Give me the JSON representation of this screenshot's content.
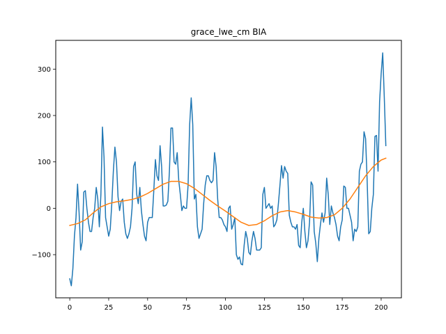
{
  "chart_data": {
    "type": "line",
    "title": "grace_lwe_cm BIA",
    "xlabel": "",
    "ylabel": "",
    "xlim": [
      -9,
      213
    ],
    "ylim": [
      -193,
      362
    ],
    "x_ticks": [
      0,
      25,
      50,
      75,
      100,
      125,
      150,
      175,
      200
    ],
    "y_ticks": [
      -100,
      0,
      100,
      200,
      300
    ],
    "grid": false,
    "legend": "none",
    "series": [
      {
        "color": "#1f77b4",
        "points": [
          [
            0,
            -152
          ],
          [
            1,
            -167
          ],
          [
            2,
            -130
          ],
          [
            3,
            -60
          ],
          [
            4,
            -20
          ],
          [
            5,
            52
          ],
          [
            6,
            -10
          ],
          [
            7,
            -90
          ],
          [
            8,
            -72
          ],
          [
            9,
            35
          ],
          [
            10,
            38
          ],
          [
            11,
            0
          ],
          [
            12,
            -30
          ],
          [
            13,
            -50
          ],
          [
            14,
            -50
          ],
          [
            15,
            -20
          ],
          [
            16,
            0
          ],
          [
            17,
            45
          ],
          [
            18,
            20
          ],
          [
            19,
            -40
          ],
          [
            20,
            30
          ],
          [
            21,
            175
          ],
          [
            22,
            110
          ],
          [
            23,
            -20
          ],
          [
            24,
            -40
          ],
          [
            25,
            -60
          ],
          [
            26,
            -45
          ],
          [
            27,
            10
          ],
          [
            28,
            80
          ],
          [
            29,
            132
          ],
          [
            30,
            100
          ],
          [
            31,
            25
          ],
          [
            32,
            -5
          ],
          [
            33,
            15
          ],
          [
            34,
            20
          ],
          [
            35,
            -30
          ],
          [
            36,
            -55
          ],
          [
            37,
            -65
          ],
          [
            38,
            -55
          ],
          [
            39,
            -40
          ],
          [
            40,
            0
          ],
          [
            41,
            90
          ],
          [
            42,
            100
          ],
          [
            43,
            30
          ],
          [
            44,
            10
          ],
          [
            45,
            45
          ],
          [
            46,
            -5
          ],
          [
            47,
            -35
          ],
          [
            48,
            -60
          ],
          [
            49,
            -70
          ],
          [
            50,
            -30
          ],
          [
            51,
            -20
          ],
          [
            52,
            -20
          ],
          [
            53,
            -20
          ],
          [
            54,
            40
          ],
          [
            55,
            105
          ],
          [
            56,
            70
          ],
          [
            57,
            60
          ],
          [
            58,
            135
          ],
          [
            59,
            90
          ],
          [
            60,
            5
          ],
          [
            61,
            5
          ],
          [
            62,
            7
          ],
          [
            63,
            15
          ],
          [
            64,
            80
          ],
          [
            65,
            173
          ],
          [
            66,
            173
          ],
          [
            67,
            100
          ],
          [
            68,
            95
          ],
          [
            69,
            120
          ],
          [
            70,
            60
          ],
          [
            71,
            30
          ],
          [
            72,
            -5
          ],
          [
            73,
            5
          ],
          [
            74,
            0
          ],
          [
            75,
            0
          ],
          [
            76,
            50
          ],
          [
            77,
            180
          ],
          [
            78,
            238
          ],
          [
            79,
            180
          ],
          [
            80,
            20
          ],
          [
            81,
            30
          ],
          [
            82,
            -40
          ],
          [
            83,
            -65
          ],
          [
            84,
            -55
          ],
          [
            85,
            -45
          ],
          [
            86,
            10
          ],
          [
            87,
            50
          ],
          [
            88,
            70
          ],
          [
            89,
            70
          ],
          [
            90,
            60
          ],
          [
            91,
            55
          ],
          [
            92,
            60
          ],
          [
            93,
            120
          ],
          [
            94,
            90
          ],
          [
            95,
            20
          ],
          [
            96,
            -20
          ],
          [
            97,
            -20
          ],
          [
            98,
            -25
          ],
          [
            99,
            -35
          ],
          [
            100,
            -40
          ],
          [
            101,
            -50
          ],
          [
            102,
            0
          ],
          [
            103,
            5
          ],
          [
            104,
            -45
          ],
          [
            105,
            -35
          ],
          [
            106,
            -20
          ],
          [
            107,
            -100
          ],
          [
            108,
            -110
          ],
          [
            109,
            -105
          ],
          [
            110,
            -120
          ],
          [
            111,
            -122
          ],
          [
            112,
            -80
          ],
          [
            113,
            -50
          ],
          [
            114,
            -65
          ],
          [
            115,
            -95
          ],
          [
            116,
            -100
          ],
          [
            117,
            -70
          ],
          [
            118,
            -50
          ],
          [
            119,
            -65
          ],
          [
            120,
            -90
          ],
          [
            121,
            -90
          ],
          [
            122,
            -90
          ],
          [
            123,
            -85
          ],
          [
            124,
            30
          ],
          [
            125,
            45
          ],
          [
            126,
            0
          ],
          [
            127,
            5
          ],
          [
            128,
            10
          ],
          [
            129,
            0
          ],
          [
            130,
            5
          ],
          [
            131,
            -40
          ],
          [
            132,
            -35
          ],
          [
            133,
            -25
          ],
          [
            134,
            10
          ],
          [
            135,
            50
          ],
          [
            136,
            92
          ],
          [
            137,
            65
          ],
          [
            138,
            90
          ],
          [
            139,
            80
          ],
          [
            140,
            75
          ],
          [
            141,
            -15
          ],
          [
            142,
            -30
          ],
          [
            143,
            -40
          ],
          [
            144,
            -40
          ],
          [
            145,
            -45
          ],
          [
            146,
            -35
          ],
          [
            147,
            -80
          ],
          [
            148,
            -85
          ],
          [
            149,
            -30
          ],
          [
            150,
            0
          ],
          [
            151,
            -50
          ],
          [
            152,
            -85
          ],
          [
            153,
            -70
          ],
          [
            154,
            -30
          ],
          [
            155,
            57
          ],
          [
            156,
            50
          ],
          [
            157,
            -50
          ],
          [
            158,
            -75
          ],
          [
            159,
            -115
          ],
          [
            160,
            -65
          ],
          [
            161,
            -35
          ],
          [
            162,
            -10
          ],
          [
            163,
            -30
          ],
          [
            164,
            -10
          ],
          [
            165,
            65
          ],
          [
            166,
            30
          ],
          [
            167,
            -35
          ],
          [
            168,
            5
          ],
          [
            169,
            -10
          ],
          [
            170,
            -20
          ],
          [
            171,
            -35
          ],
          [
            172,
            -60
          ],
          [
            173,
            -70
          ],
          [
            174,
            -40
          ],
          [
            175,
            -25
          ],
          [
            176,
            48
          ],
          [
            177,
            45
          ],
          [
            178,
            0
          ],
          [
            179,
            0
          ],
          [
            180,
            -15
          ],
          [
            181,
            -30
          ],
          [
            182,
            -70
          ],
          [
            183,
            -45
          ],
          [
            184,
            -50
          ],
          [
            185,
            -40
          ],
          [
            186,
            80
          ],
          [
            187,
            95
          ],
          [
            188,
            100
          ],
          [
            189,
            165
          ],
          [
            190,
            150
          ],
          [
            191,
            60
          ],
          [
            192,
            -55
          ],
          [
            193,
            -50
          ],
          [
            194,
            0
          ],
          [
            195,
            30
          ],
          [
            196,
            155
          ],
          [
            197,
            157
          ],
          [
            198,
            80
          ],
          [
            199,
            230
          ],
          [
            200,
            290
          ],
          [
            201,
            335
          ],
          [
            202,
            240
          ],
          [
            203,
            135
          ]
        ]
      },
      {
        "color": "#ff7f0e",
        "points": [
          [
            0,
            -37
          ],
          [
            5,
            -33
          ],
          [
            10,
            -25
          ],
          [
            15,
            -10
          ],
          [
            20,
            3
          ],
          [
            25,
            10
          ],
          [
            30,
            14
          ],
          [
            35,
            16
          ],
          [
            40,
            19
          ],
          [
            45,
            24
          ],
          [
            50,
            32
          ],
          [
            55,
            42
          ],
          [
            60,
            52
          ],
          [
            65,
            58
          ],
          [
            70,
            58
          ],
          [
            75,
            53
          ],
          [
            80,
            43
          ],
          [
            85,
            30
          ],
          [
            90,
            17
          ],
          [
            95,
            5
          ],
          [
            100,
            -6
          ],
          [
            105,
            -18
          ],
          [
            110,
            -30
          ],
          [
            115,
            -37
          ],
          [
            120,
            -35
          ],
          [
            125,
            -27
          ],
          [
            130,
            -16
          ],
          [
            135,
            -8
          ],
          [
            140,
            -5
          ],
          [
            145,
            -8
          ],
          [
            150,
            -13
          ],
          [
            155,
            -19
          ],
          [
            160,
            -21
          ],
          [
            165,
            -20
          ],
          [
            170,
            -14
          ],
          [
            175,
            0
          ],
          [
            180,
            20
          ],
          [
            185,
            45
          ],
          [
            190,
            70
          ],
          [
            195,
            90
          ],
          [
            200,
            104
          ],
          [
            203,
            108
          ]
        ]
      }
    ]
  }
}
